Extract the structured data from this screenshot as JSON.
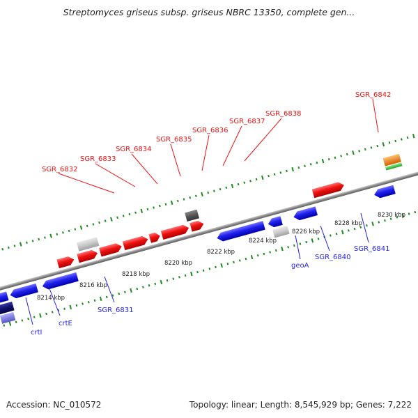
{
  "title": "Streptomyces griseus subsp. griseus NBRC 13350, complete gen...",
  "footer": {
    "accession": "Accession: NC_010572",
    "summary": "Topology: linear; Length: 8,545,929 bp; Genes: 7,222"
  },
  "colors": {
    "forward": "#ee1111",
    "reverse": "#1f1fee",
    "dark_blue": "#10106e",
    "light_blue": "#8080e0",
    "light_gray": "#c8c8c8",
    "dark_gray": "#555555",
    "backbone": "#8a8a8a",
    "ticks": "#1a8a1a",
    "orange": "#f08a10",
    "green": "#40c040"
  },
  "scale": {
    "unit": "kbp",
    "labels": [
      "8214 kbp",
      "8216 kbp",
      "8218 kbp",
      "8220 kbp",
      "8222 kbp",
      "8224 kbp",
      "8226 kbp",
      "8228 kbp",
      "8230 kbp"
    ]
  },
  "genes": {
    "top": [
      "SGR_6832",
      "SGR_6833",
      "SGR_6834",
      "SGR_6835",
      "SGR_6836",
      "SGR_6837",
      "SGR_6838",
      "SGR_6842"
    ],
    "bottom": [
      "crtI",
      "crtE",
      "SGR_6831",
      "geoA",
      "SGR_6840",
      "SGR_6841"
    ]
  }
}
